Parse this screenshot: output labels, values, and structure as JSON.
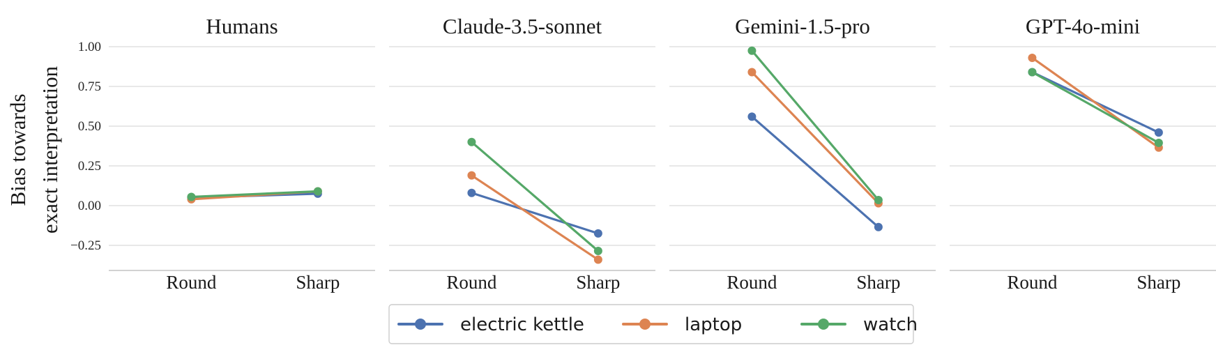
{
  "chart_data": {
    "type": "line",
    "ylabel_lines": [
      "Bias towards",
      "exact interpretation"
    ],
    "categories": [
      "Round",
      "Sharp"
    ],
    "ylim": [
      -0.32,
      1.03
    ],
    "yticks": [
      "1.00",
      "0.75",
      "0.50",
      "0.25",
      "0.00",
      "−0.25"
    ],
    "ytick_values": [
      1.0,
      0.75,
      0.5,
      0.25,
      0.0,
      -0.25
    ],
    "grid": true,
    "legend_position": "bottom-center",
    "colors": {
      "electric kettle": "#4c72b0",
      "laptop": "#dd8452",
      "watch": "#55a868"
    },
    "legend": [
      "electric kettle",
      "laptop",
      "watch"
    ],
    "panels": [
      {
        "title": "Humans",
        "series": [
          {
            "name": "electric kettle",
            "values": [
              0.05,
              0.075
            ]
          },
          {
            "name": "laptop",
            "values": [
              0.04,
              0.09
            ]
          },
          {
            "name": "watch",
            "values": [
              0.055,
              0.09
            ]
          }
        ]
      },
      {
        "title": "Claude-3.5-sonnet",
        "series": [
          {
            "name": "electric kettle",
            "values": [
              0.08,
              -0.175
            ]
          },
          {
            "name": "laptop",
            "values": [
              0.19,
              -0.34
            ]
          },
          {
            "name": "watch",
            "values": [
              0.4,
              -0.285
            ]
          }
        ]
      },
      {
        "title": "Gemini-1.5-pro",
        "series": [
          {
            "name": "electric kettle",
            "values": [
              0.56,
              -0.135
            ]
          },
          {
            "name": "laptop",
            "values": [
              0.84,
              0.015
            ]
          },
          {
            "name": "watch",
            "values": [
              0.975,
              0.035
            ]
          }
        ]
      },
      {
        "title": "GPT-4o-mini",
        "series": [
          {
            "name": "electric kettle",
            "values": [
              0.84,
              0.46
            ]
          },
          {
            "name": "laptop",
            "values": [
              0.93,
              0.365
            ]
          },
          {
            "name": "watch",
            "values": [
              0.84,
              0.395
            ]
          }
        ]
      }
    ]
  }
}
